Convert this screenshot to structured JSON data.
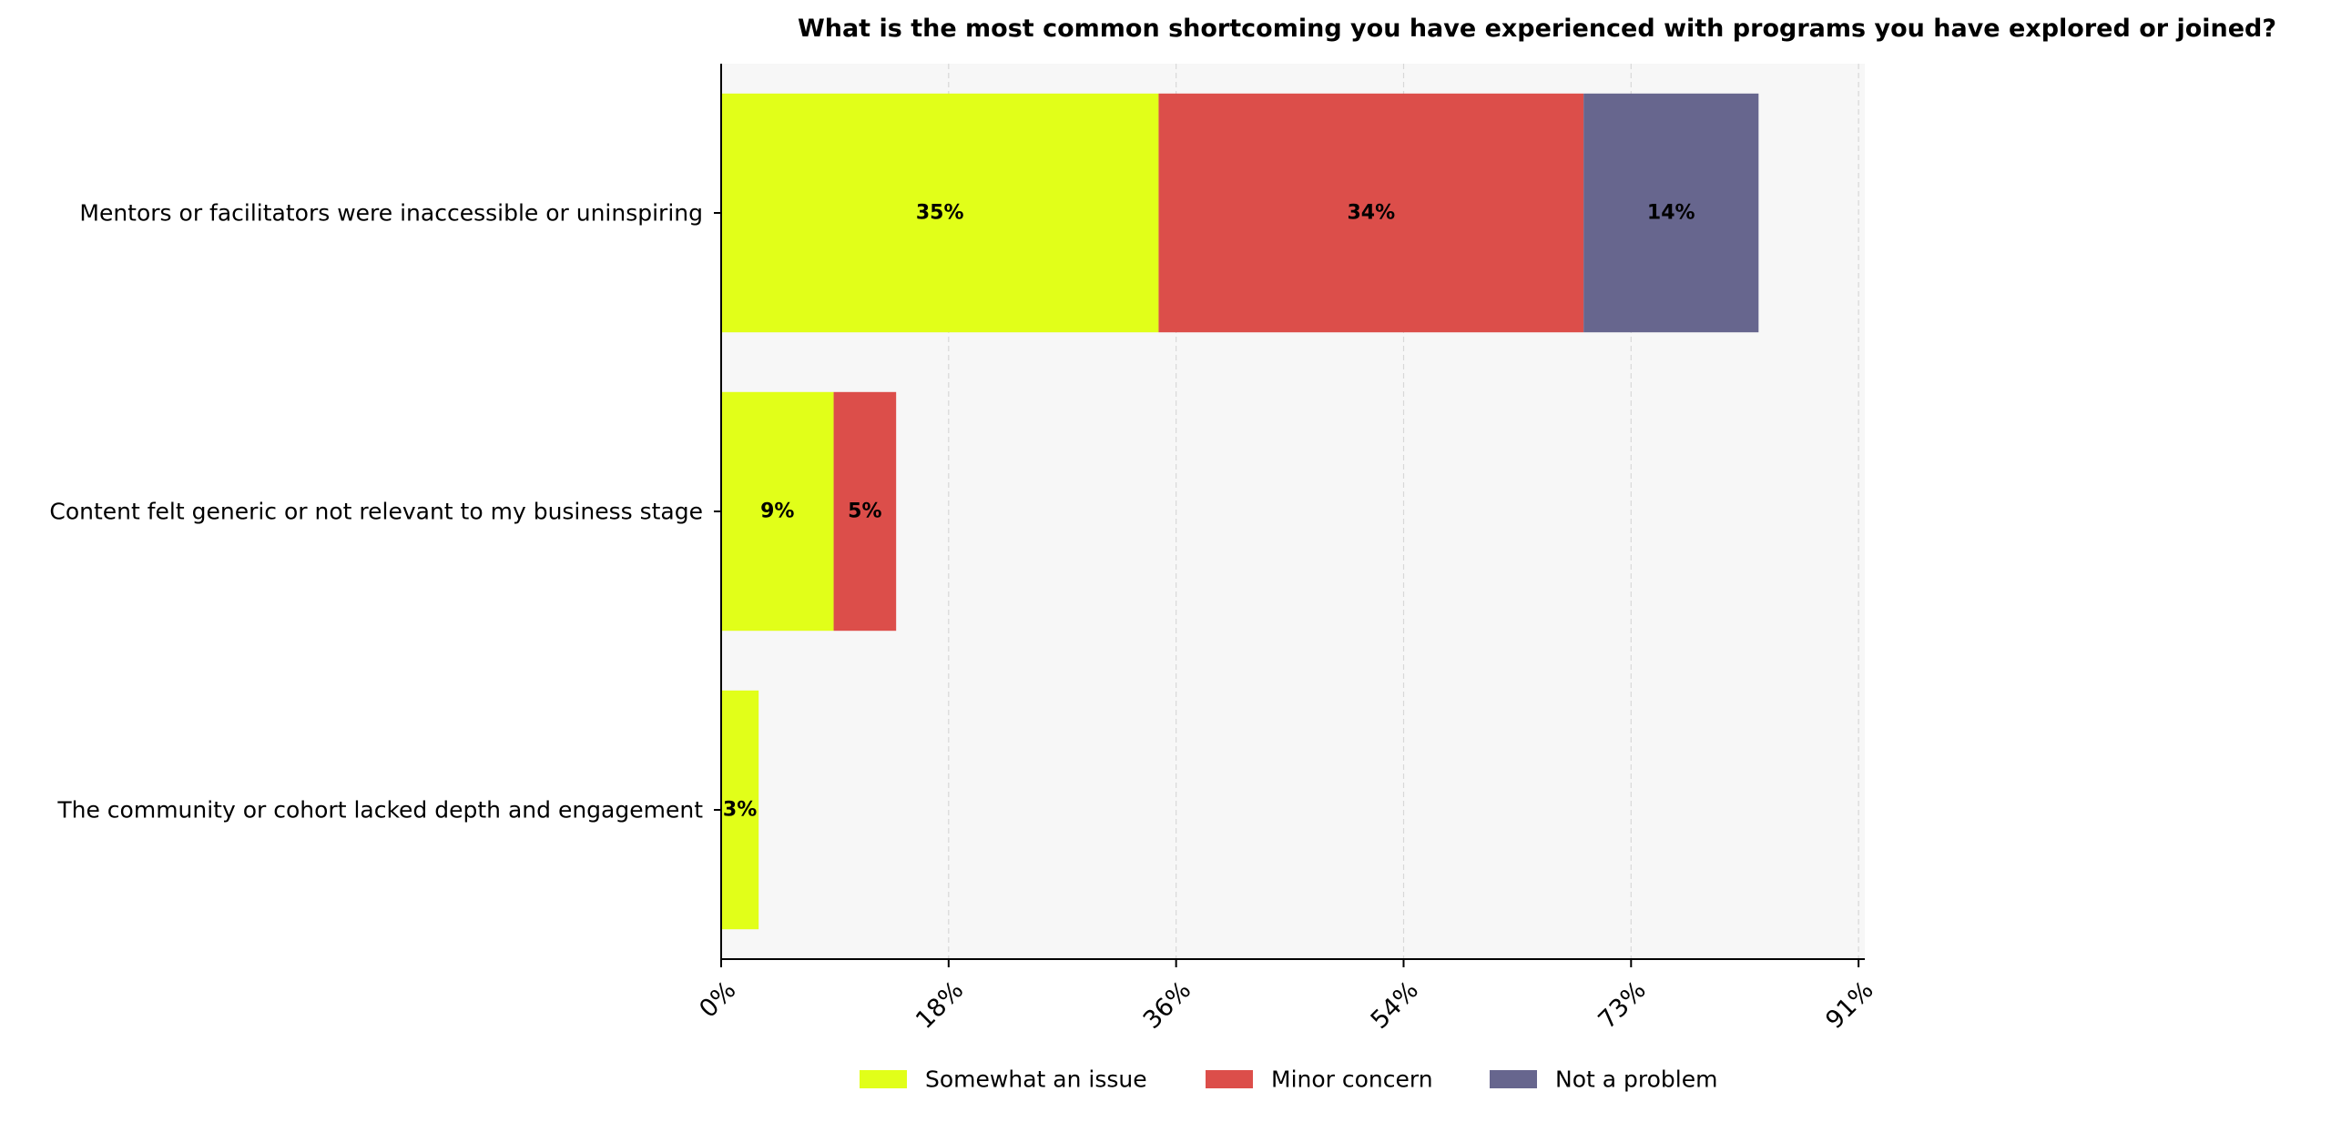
{
  "chart_data": {
    "type": "bar",
    "orientation": "horizontal",
    "stacked": true,
    "title": "What is the most common shortcoming you have experienced with programs you have explored or joined?",
    "xlabel": "",
    "ylabel": "",
    "categories": [
      "Mentors or facilitators were inaccessible or uninspiring",
      "Content felt generic or not relevant to my business stage",
      "The community or cohort lacked depth and engagement"
    ],
    "series": [
      {
        "name": "Somewhat an issue",
        "color": "#e1ff19",
        "values": [
          35,
          9,
          3
        ]
      },
      {
        "name": "Minor concern",
        "color": "#dc4e4a",
        "values": [
          34,
          5,
          0
        ]
      },
      {
        "name": "Not a problem",
        "color": "#67668e",
        "values": [
          14,
          0,
          0
        ]
      }
    ],
    "data_labels": [
      [
        "35%",
        "34%",
        "14%"
      ],
      [
        "9%",
        "5%",
        ""
      ],
      [
        "3%",
        "",
        ""
      ]
    ],
    "xlim": [
      0,
      91.5
    ],
    "xticks": [
      0,
      18.2,
      36.4,
      54.6,
      72.8,
      91
    ],
    "xtick_labels": [
      "0%",
      "18%",
      "36%",
      "54%",
      "73%",
      "91%"
    ],
    "grid": "vertical dashed",
    "legend_position": "bottom-center",
    "plot_background": "#f7f7f7"
  }
}
